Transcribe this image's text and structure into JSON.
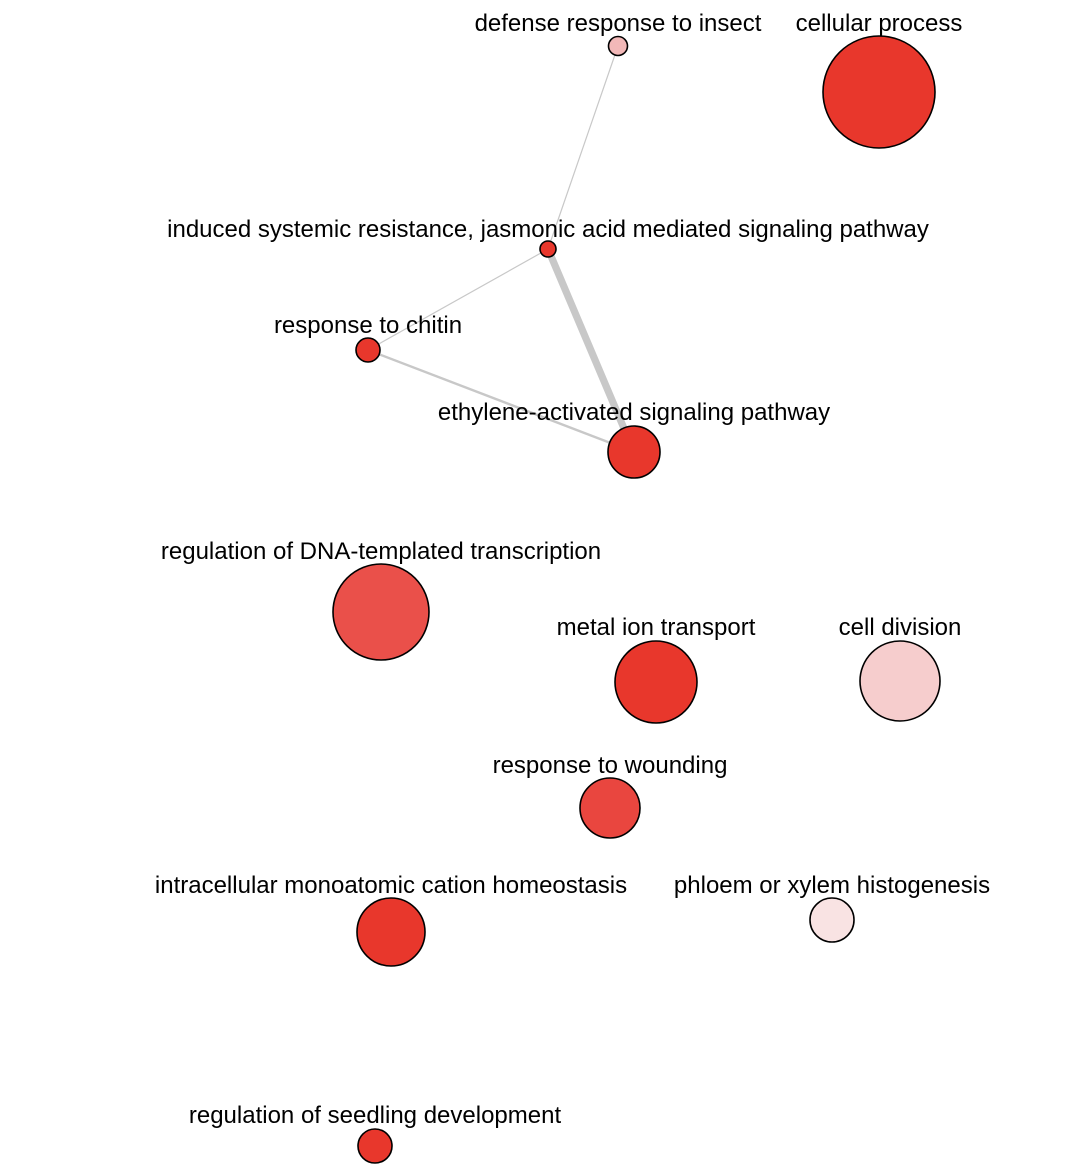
{
  "network": {
    "nodes": [
      {
        "id": "defense_insect",
        "label": "defense response to insect",
        "color": "#f2b8b8"
      },
      {
        "id": "cellular_process",
        "label": "cellular process",
        "color": "#e8372c"
      },
      {
        "id": "isr_ja",
        "label": "induced systemic resistance, jasmonic acid mediated signaling pathway",
        "color": "#e8372c"
      },
      {
        "id": "chitin",
        "label": "response to chitin",
        "color": "#e8372c"
      },
      {
        "id": "ethylene",
        "label": "ethylene-activated signaling pathway",
        "color": "#e8372c"
      },
      {
        "id": "dna_transcription",
        "label": "regulation of DNA-templated transcription",
        "color": "#ea504a"
      },
      {
        "id": "metal_ion",
        "label": "metal ion transport",
        "color": "#e8372c"
      },
      {
        "id": "cell_division",
        "label": "cell division",
        "color": "#f6cdcd"
      },
      {
        "id": "wounding",
        "label": "response to wounding",
        "color": "#e9463f"
      },
      {
        "id": "cation_homeostasis",
        "label": "intracellular monoatomic cation homeostasis",
        "color": "#e8372c"
      },
      {
        "id": "phloem_xylem",
        "label": "phloem or xylem histogenesis",
        "color": "#f9e3e3"
      },
      {
        "id": "seedling",
        "label": "regulation of seedling development",
        "color": "#e8372c"
      }
    ],
    "edges": [
      {
        "source": "defense_insect",
        "target": "isr_ja",
        "weight": 1
      },
      {
        "source": "isr_ja",
        "target": "chitin",
        "weight": 1
      },
      {
        "source": "isr_ja",
        "target": "ethylene",
        "weight": 6
      },
      {
        "source": "chitin",
        "target": "ethylene",
        "weight": 2
      }
    ]
  }
}
